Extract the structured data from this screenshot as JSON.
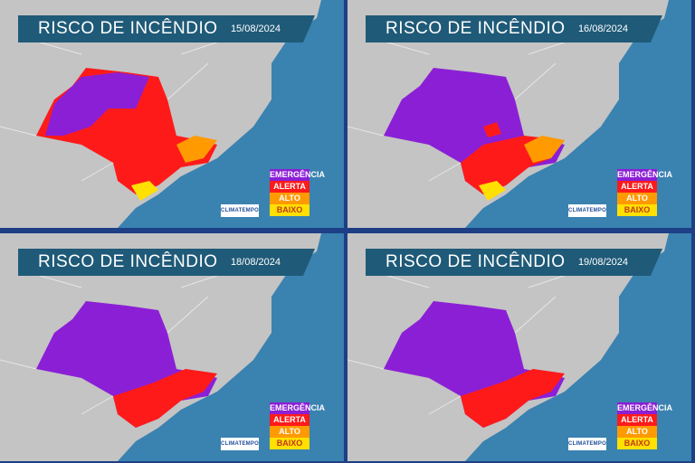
{
  "panels": [
    {
      "title": "RISCO DE INCÊNDIO",
      "date": "15/08/2024",
      "risk": "high-red"
    },
    {
      "title": "RISCO DE INCÊNDIO",
      "date": "16/08/2024",
      "risk": "mostly-purple"
    },
    {
      "title": "RISCO DE INCÊNDIO",
      "date": "18/08/2024",
      "risk": "purple-coast-red"
    },
    {
      "title": "RISCO DE INCÊNDIO",
      "date": "19/08/2024",
      "risk": "purple-coast-red"
    }
  ],
  "legend": [
    {
      "label": "EMERGÊNCIA",
      "color": "#8b1fd6",
      "text_color": "#ffffff"
    },
    {
      "label": "ALERTA",
      "color": "#ff1a1a",
      "text_color": "#ffffff"
    },
    {
      "label": "ALTO",
      "color": "#ff9a00",
      "text_color": "#ffffff"
    },
    {
      "label": "BAIXO",
      "color": "#ffe000",
      "text_color": "#c0391b"
    }
  ],
  "logo_text": "CLIMATEMPO",
  "colors": {
    "ocean": "#3a82b0",
    "land": "#c4c4c4",
    "banner": "#1f5a78",
    "frame": "#1d3f86"
  }
}
